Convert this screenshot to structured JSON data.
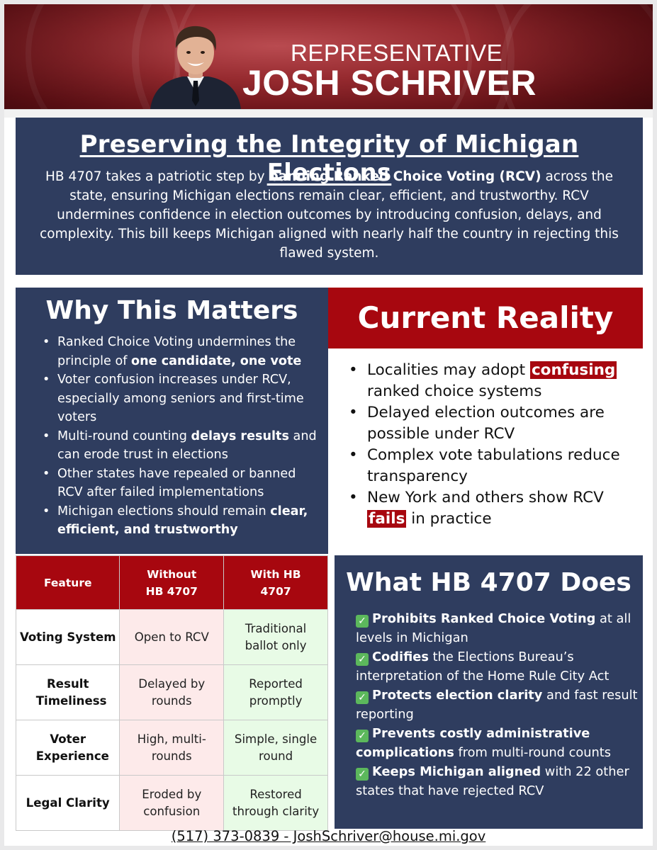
{
  "header": {
    "title_line1": "REPRESENTATIVE",
    "title_line2": "JOSH SCHRIVER"
  },
  "intro": {
    "heading": "Preserving the Integrity of Michigan Elections",
    "text_before": "HB 4707 takes a patriotic step by ",
    "text_bold": "banning Ranked Choice Voting (RCV)",
    "text_after": " across the state, ensuring Michigan elections remain clear, efficient, and trustworthy. RCV undermines confidence in election outcomes by introducing confusion, delays, and complexity. This bill keeps Michigan aligned with nearly half the country in rejecting this flawed system."
  },
  "why": {
    "heading": "Why This Matters",
    "items": [
      {
        "pre": "Ranked Choice Voting undermines the principle of ",
        "bold": "one candidate, one vote",
        "post": ""
      },
      {
        "pre": "Voter confusion increases under RCV, especially among seniors and first-time voters",
        "bold": "",
        "post": ""
      },
      {
        "pre": "Multi-round counting ",
        "bold": "delays results",
        "post": " and can erode trust in elections"
      },
      {
        "pre": "Other states have repealed or banned RCV after failed implementations",
        "bold": "",
        "post": ""
      },
      {
        "pre": "Michigan elections should remain ",
        "bold": "clear, efficient, and trustworthy",
        "post": ""
      }
    ]
  },
  "reality": {
    "heading": "Current Reality",
    "items": [
      {
        "pre": "Localities may adopt ",
        "hl": "confusing",
        "post": " ranked choice systems"
      },
      {
        "pre": "Delayed election outcomes are possible under RCV",
        "hl": "",
        "post": ""
      },
      {
        "pre": "Complex vote tabulations reduce transparency",
        "hl": "",
        "post": ""
      },
      {
        "pre": "New York and others show RCV ",
        "hl": "fails",
        "post": " in practice"
      }
    ]
  },
  "table": {
    "headers": [
      "Feature",
      "Without HB 4707",
      "With HB 4707"
    ],
    "rows": [
      {
        "feature": "Voting System",
        "without": "Open to RCV",
        "with": "Traditional ballot only"
      },
      {
        "feature": "Result Timeliness",
        "without": "Delayed by rounds",
        "with": "Reported promptly"
      },
      {
        "feature": "Voter Experience",
        "without": "High, multi-rounds",
        "with": "Simple, single round"
      },
      {
        "feature": "Legal Clarity",
        "without": "Eroded by confusion",
        "with": "Restored through clarity"
      }
    ]
  },
  "does": {
    "heading": "What HB 4707 Does",
    "check_symbol": "✓",
    "items": [
      {
        "bold": "Prohibits Ranked Choice Voting",
        "rest": " at all levels in Michigan"
      },
      {
        "bold": "Codifies",
        "rest": " the Elections Bureau’s interpretation of the Home Rule City Act"
      },
      {
        "bold": "Protects election clarity",
        "rest": " and fast result reporting"
      },
      {
        "bold": "Prevents costly administrative complications",
        "rest": " from multi-round counts"
      },
      {
        "bold": "Keeps Michigan aligned",
        "rest": " with 22 other states that have rejected RCV"
      }
    ]
  },
  "footer": {
    "contact": "(517) 373-0839 - JoshSchriver@house.mi.gov"
  },
  "colors": {
    "navy": "#2f3d5f",
    "red": "#a7070f",
    "without_bg": "#fdeaea",
    "with_bg": "#e8fbe6",
    "check_green": "#5cb85c"
  }
}
